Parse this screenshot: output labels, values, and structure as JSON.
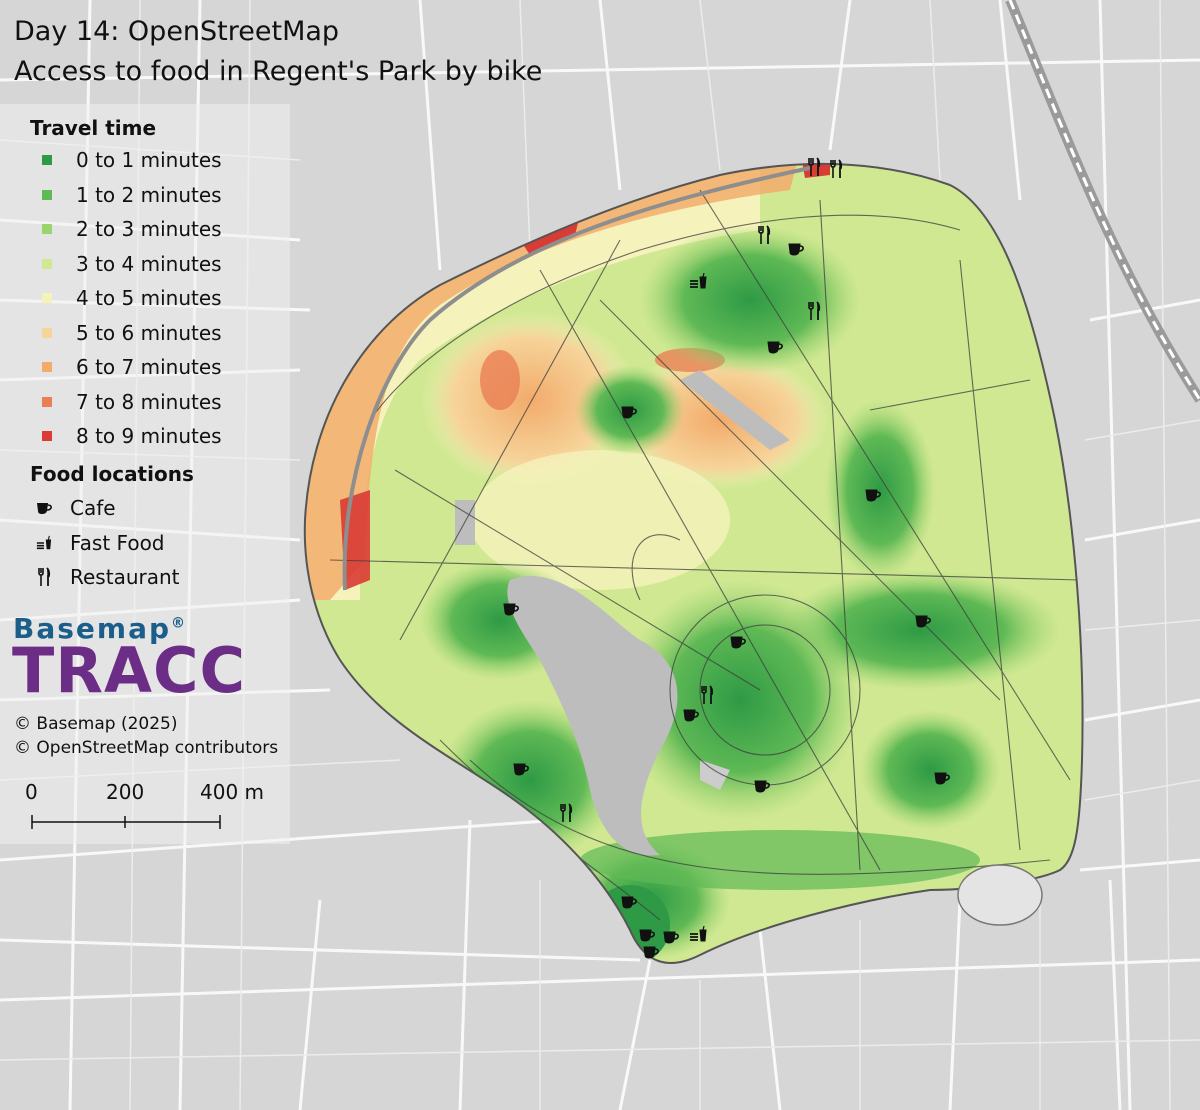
{
  "title": {
    "line1": "Day 14: OpenStreetMap",
    "line2": "Access to food in Regent's Park by bike"
  },
  "legend": {
    "travel_heading": "Travel time",
    "travel_classes": [
      {
        "label": "0 to 1 minutes",
        "color": "#2e9a45"
      },
      {
        "label": "1 to 2 minutes",
        "color": "#5fb955"
      },
      {
        "label": "2 to 3 minutes",
        "color": "#9bd36f"
      },
      {
        "label": "3 to 4 minutes",
        "color": "#cfe891"
      },
      {
        "label": "4 to 5 minutes",
        "color": "#f5f3bb"
      },
      {
        "label": "5 to 6 minutes",
        "color": "#f6d49a"
      },
      {
        "label": "6 to 7 minutes",
        "color": "#f2ab6b"
      },
      {
        "label": "7 to 8 minutes",
        "color": "#ea7f55"
      },
      {
        "label": "8 to 9 minutes",
        "color": "#d93b35"
      }
    ],
    "food_heading": "Food locations",
    "food_types": [
      {
        "label": "Cafe",
        "icon": "cup-icon"
      },
      {
        "label": "Fast Food",
        "icon": "fast-food-icon"
      },
      {
        "label": "Restaurant",
        "icon": "fork-knife-icon"
      }
    ]
  },
  "logo": {
    "top": "Basemap",
    "mark": "®",
    "main": "TRACC",
    "colors": {
      "top": "#1b5e8a",
      "main": "#6c2d86"
    }
  },
  "credits": {
    "basemap": "© Basemap (2025)",
    "osm": "© OpenStreetMap contributors"
  },
  "scale": {
    "labels": [
      "0",
      "200",
      "400 m"
    ]
  },
  "map_colors": {
    "background": "#d9d9d9",
    "roads": "#ffffff",
    "paths": "#3c3c3c",
    "water": "#bdbdbd"
  }
}
